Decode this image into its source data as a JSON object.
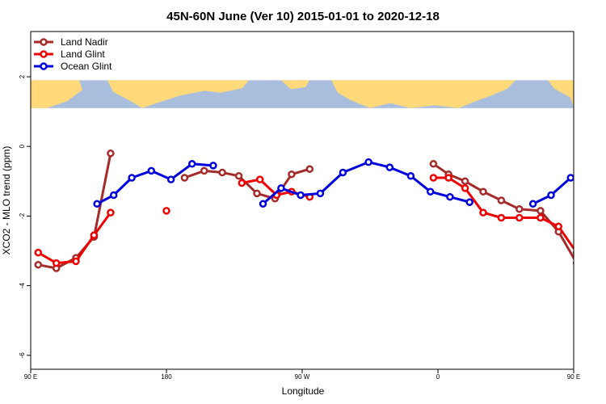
{
  "chart_data": {
    "type": "line",
    "title": "45N-60N June (Ver 10)   2015-01-01 to 2020-12-18",
    "xlabel": "Longitude",
    "ylabel": "XCO2 - MLO trend (ppm)",
    "xlim": [
      90,
      450
    ],
    "ylim": [
      -6.4,
      3.3
    ],
    "x_ticks": [
      {
        "value": 90,
        "label": "90 E"
      },
      {
        "value": 180,
        "label": "180"
      },
      {
        "value": 270,
        "label": "90 W"
      },
      {
        "value": 360,
        "label": "0"
      },
      {
        "value": 450,
        "label": "90 E"
      },
      {
        "value": 540,
        "label": "180"
      }
    ],
    "y_ticks": [
      {
        "value": 2,
        "label": "2"
      },
      {
        "value": 0,
        "label": "0"
      },
      {
        "value": -2,
        "label": "-2"
      },
      {
        "value": -4,
        "label": "-4"
      },
      {
        "value": -6,
        "label": "-6"
      }
    ],
    "legend_position": "top-left",
    "map_strip": {
      "y_top": 1.9,
      "y_bottom": 1.1,
      "land_color": "#FFD97A",
      "ocean_color": "#A9BEDD"
    },
    "series": [
      {
        "name": "Land Nadir",
        "color": "#A52A2A",
        "points": [
          [
            95,
            -3.4
          ],
          [
            107,
            -3.5
          ],
          [
            120,
            -3.2
          ],
          [
            132,
            -2.6
          ],
          [
            143,
            -0.2
          ],
          null,
          [
            192,
            -0.9
          ],
          [
            205,
            -0.7
          ],
          [
            217,
            -0.75
          ],
          [
            228,
            -0.85
          ],
          [
            240,
            -1.35
          ],
          [
            252,
            -1.5
          ],
          [
            263,
            -0.8
          ],
          [
            275,
            -0.65
          ],
          null,
          [
            357,
            -0.5
          ],
          [
            367,
            -0.8
          ],
          [
            378,
            -1.0
          ],
          [
            390,
            -1.3
          ],
          [
            402,
            -1.55
          ],
          [
            414,
            -1.8
          ],
          [
            428,
            -1.85
          ],
          [
            440,
            -2.45
          ],
          [
            452,
            -3.35
          ],
          [
            465,
            -3.5
          ],
          [
            478,
            -3.2
          ],
          [
            490,
            -2.55
          ],
          [
            502,
            -0.2
          ]
        ]
      },
      {
        "name": "Land Glint",
        "color": "#EE0000",
        "points": [
          [
            95,
            -3.05
          ],
          [
            107,
            -3.35
          ],
          [
            120,
            -3.3
          ],
          [
            132,
            -2.55
          ],
          [
            143,
            -1.9
          ],
          null,
          [
            180,
            -1.85
          ],
          null,
          [
            230,
            -1.05
          ],
          [
            242,
            -0.95
          ],
          [
            253,
            -1.4
          ],
          [
            263,
            -1.3
          ],
          [
            275,
            -1.45
          ],
          null,
          [
            357,
            -0.9
          ],
          [
            367,
            -0.9
          ],
          [
            378,
            -1.2
          ],
          [
            390,
            -1.9
          ],
          [
            402,
            -2.05
          ],
          [
            414,
            -2.05
          ],
          [
            428,
            -2.05
          ],
          [
            440,
            -2.3
          ],
          [
            452,
            -3.05
          ],
          [
            465,
            -3.35
          ],
          [
            478,
            -3.35
          ],
          [
            490,
            -2.55
          ],
          [
            502,
            -1.9
          ]
        ]
      },
      {
        "name": "Ocean Glint",
        "color": "#0000DD",
        "points": [
          [
            134,
            -1.65
          ],
          [
            145,
            -1.4
          ],
          [
            157,
            -0.9
          ],
          [
            170,
            -0.7
          ],
          [
            183,
            -0.95
          ],
          [
            197,
            -0.5
          ],
          [
            211,
            -0.55
          ],
          null,
          [
            244,
            -1.65
          ],
          [
            256,
            -1.2
          ],
          [
            269,
            -1.4
          ],
          [
            282,
            -1.35
          ],
          [
            297,
            -0.75
          ],
          [
            314,
            -0.45
          ],
          [
            328,
            -0.6
          ],
          [
            342,
            -0.85
          ],
          [
            355,
            -1.3
          ],
          [
            368,
            -1.45
          ],
          [
            381,
            -1.6
          ],
          null,
          [
            423,
            -1.65
          ],
          [
            435,
            -1.4
          ],
          [
            448,
            -0.9
          ]
        ]
      }
    ]
  }
}
